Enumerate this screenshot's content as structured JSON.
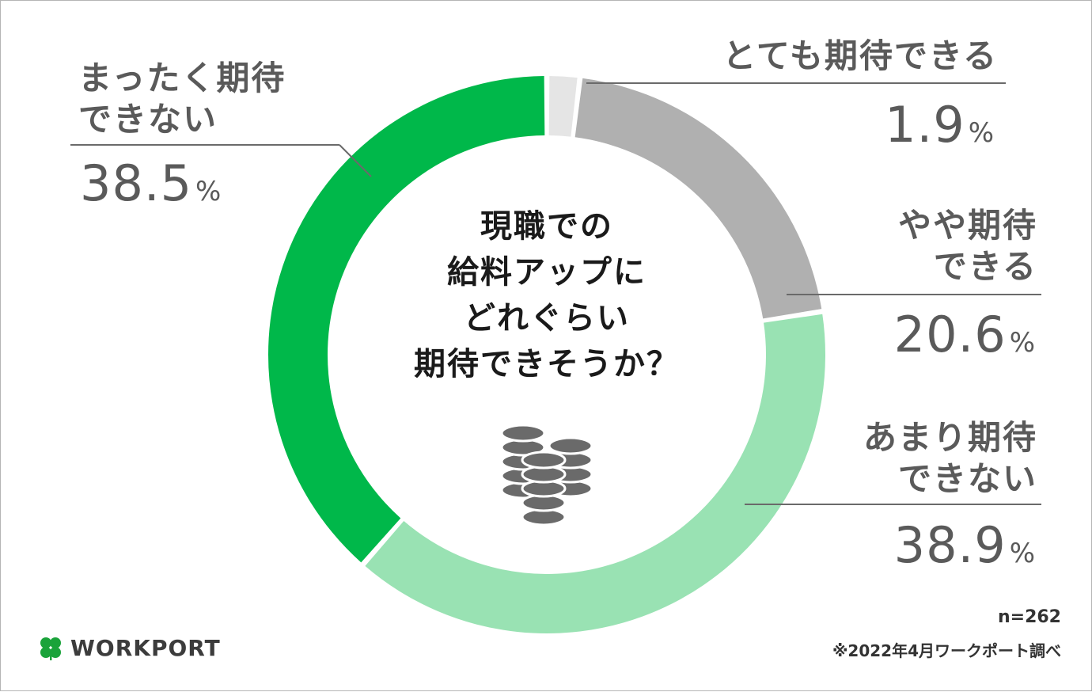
{
  "chart_data": {
    "type": "pie",
    "title": "現職での\n給料アップに\nどれぐらい\n期待できそうか？",
    "unit": "%",
    "series": [
      {
        "name": "とても期待できる",
        "label_lines": [
          "とても期待できる"
        ],
        "value": 1.9,
        "color": "#e5e5e5"
      },
      {
        "name": "やや期待できる",
        "label_lines": [
          "やや期待",
          "できる"
        ],
        "value": 20.6,
        "color": "#b0b0b0"
      },
      {
        "name": "あまり期待できない",
        "label_lines": [
          "あまり期待",
          "できない"
        ],
        "value": 38.9,
        "color": "#99e2b3"
      },
      {
        "name": "まったく期待できない",
        "label_lines": [
          "まったく期待",
          "できない"
        ],
        "value": 38.5,
        "color": "#00b84a"
      }
    ]
  },
  "footer": {
    "sample_size": "n=262",
    "source": "※2022年4月ワークポート調べ",
    "brand": "WORKPORT"
  },
  "icons": {
    "center": "coin-stack-icon",
    "brand": "clover-icon"
  },
  "colors": {
    "label_text": "#5a5a5a",
    "icon": "#6a6a6a",
    "brand_green": "#1aa33a"
  }
}
